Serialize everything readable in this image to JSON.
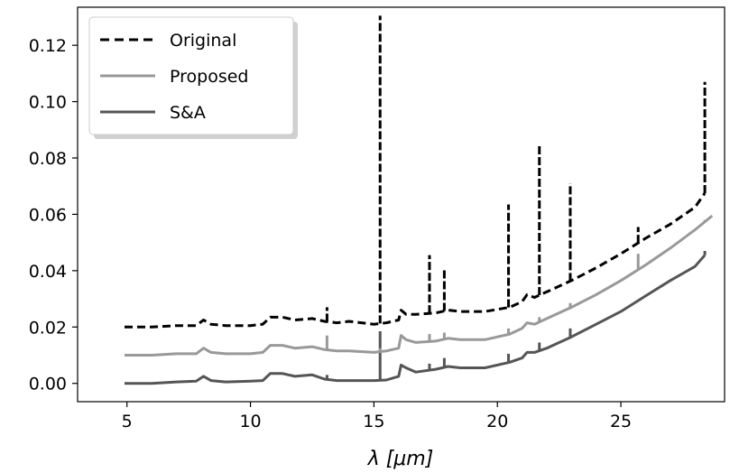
{
  "chart_data": {
    "type": "line",
    "xlabel": "λ [μm]",
    "ylabel": "",
    "xlim": [
      3.0,
      29.2
    ],
    "ylim": [
      -0.0065,
      0.1335
    ],
    "xticks": [
      5,
      10,
      15,
      20,
      25
    ],
    "xtick_labels": [
      "5",
      "10",
      "15",
      "20",
      "25"
    ],
    "yticks": [
      0.0,
      0.02,
      0.04,
      0.06,
      0.08,
      0.1,
      0.12
    ],
    "ytick_labels": [
      "0.00",
      "0.02",
      "0.04",
      "0.06",
      "0.08",
      "0.10",
      "0.12"
    ],
    "grid": false,
    "legend_position": "top-left",
    "series": [
      {
        "name": "Original",
        "style": "dashed",
        "color": "#000000",
        "points": [
          [
            4.9,
            0.02
          ],
          [
            6.0,
            0.02
          ],
          [
            7.0,
            0.0205
          ],
          [
            7.8,
            0.0205
          ],
          [
            8.1,
            0.0225
          ],
          [
            8.4,
            0.021
          ],
          [
            9.0,
            0.0205
          ],
          [
            10.0,
            0.0205
          ],
          [
            10.5,
            0.021
          ],
          [
            10.8,
            0.0235
          ],
          [
            11.3,
            0.0235
          ],
          [
            11.8,
            0.0225
          ],
          [
            12.5,
            0.023
          ],
          [
            13.0,
            0.022
          ],
          [
            13.5,
            0.0215
          ],
          [
            14.0,
            0.022
          ],
          [
            15.0,
            0.021
          ],
          [
            15.5,
            0.0215
          ],
          [
            16.0,
            0.0225
          ],
          [
            16.1,
            0.026
          ],
          [
            16.3,
            0.0245
          ],
          [
            16.7,
            0.0245
          ],
          [
            17.5,
            0.025
          ],
          [
            18.0,
            0.026
          ],
          [
            18.5,
            0.0255
          ],
          [
            19.5,
            0.0255
          ],
          [
            20.5,
            0.027
          ],
          [
            21.0,
            0.029
          ],
          [
            21.2,
            0.0315
          ],
          [
            21.5,
            0.0305
          ],
          [
            22.0,
            0.0325
          ],
          [
            23.0,
            0.0365
          ],
          [
            24.0,
            0.041
          ],
          [
            25.0,
            0.046
          ],
          [
            26.0,
            0.0515
          ],
          [
            27.0,
            0.0565
          ],
          [
            28.0,
            0.0625
          ],
          [
            28.4,
            0.0675
          ]
        ],
        "spikes": [
          [
            13.1,
            0.027
          ],
          [
            15.25,
            0.1305
          ],
          [
            17.25,
            0.0455
          ],
          [
            17.85,
            0.0405
          ],
          [
            20.45,
            0.0635
          ],
          [
            21.7,
            0.0845
          ],
          [
            22.95,
            0.071
          ],
          [
            25.7,
            0.0555
          ],
          [
            28.4,
            0.107
          ]
        ]
      },
      {
        "name": "Proposed",
        "style": "solid",
        "color": "#999999",
        "points": [
          [
            4.9,
            0.01
          ],
          [
            6.0,
            0.01
          ],
          [
            7.0,
            0.0105
          ],
          [
            7.8,
            0.0105
          ],
          [
            8.1,
            0.0125
          ],
          [
            8.4,
            0.011
          ],
          [
            9.0,
            0.0105
          ],
          [
            10.0,
            0.0105
          ],
          [
            10.5,
            0.011
          ],
          [
            10.8,
            0.0135
          ],
          [
            11.3,
            0.0135
          ],
          [
            11.8,
            0.0125
          ],
          [
            12.5,
            0.013
          ],
          [
            13.0,
            0.012
          ],
          [
            13.5,
            0.0115
          ],
          [
            14.0,
            0.0115
          ],
          [
            15.0,
            0.011
          ],
          [
            15.5,
            0.0115
          ],
          [
            16.0,
            0.0125
          ],
          [
            16.1,
            0.017
          ],
          [
            16.3,
            0.0155
          ],
          [
            16.7,
            0.0145
          ],
          [
            17.5,
            0.015
          ],
          [
            18.0,
            0.016
          ],
          [
            18.5,
            0.0155
          ],
          [
            19.5,
            0.0155
          ],
          [
            20.5,
            0.0175
          ],
          [
            21.0,
            0.0195
          ],
          [
            21.2,
            0.0215
          ],
          [
            21.5,
            0.021
          ],
          [
            22.0,
            0.023
          ],
          [
            23.0,
            0.027
          ],
          [
            24.0,
            0.0315
          ],
          [
            25.0,
            0.0365
          ],
          [
            26.0,
            0.042
          ],
          [
            27.0,
            0.048
          ],
          [
            28.0,
            0.0545
          ],
          [
            28.7,
            0.0595
          ]
        ],
        "spikes": [
          [
            13.1,
            0.017
          ],
          [
            15.25,
            0.0125
          ],
          [
            17.25,
            0.0175
          ],
          [
            17.85,
            0.018
          ],
          [
            20.45,
            0.0195
          ],
          [
            21.7,
            0.0235
          ],
          [
            22.95,
            0.0285
          ],
          [
            25.7,
            0.046
          ],
          [
            28.4,
            0.058
          ]
        ]
      },
      {
        "name": "S&A",
        "style": "solid",
        "color": "#555555",
        "points": [
          [
            4.9,
            0.0
          ],
          [
            6.0,
            0.0
          ],
          [
            7.0,
            0.0005
          ],
          [
            7.8,
            0.0008
          ],
          [
            8.1,
            0.0025
          ],
          [
            8.4,
            0.001
          ],
          [
            9.0,
            0.0005
          ],
          [
            10.0,
            0.0008
          ],
          [
            10.5,
            0.001
          ],
          [
            10.8,
            0.0035
          ],
          [
            11.3,
            0.0035
          ],
          [
            11.8,
            0.0025
          ],
          [
            12.5,
            0.003
          ],
          [
            13.0,
            0.0015
          ],
          [
            13.5,
            0.001
          ],
          [
            14.0,
            0.001
          ],
          [
            15.0,
            0.001
          ],
          [
            15.5,
            0.0012
          ],
          [
            16.0,
            0.0025
          ],
          [
            16.1,
            0.0065
          ],
          [
            16.3,
            0.0055
          ],
          [
            16.7,
            0.004
          ],
          [
            17.5,
            0.005
          ],
          [
            18.0,
            0.006
          ],
          [
            18.5,
            0.0055
          ],
          [
            19.5,
            0.0055
          ],
          [
            20.5,
            0.0075
          ],
          [
            21.0,
            0.009
          ],
          [
            21.2,
            0.011
          ],
          [
            21.5,
            0.011
          ],
          [
            22.0,
            0.0125
          ],
          [
            23.0,
            0.0165
          ],
          [
            24.0,
            0.021
          ],
          [
            25.0,
            0.0255
          ],
          [
            26.0,
            0.031
          ],
          [
            27.0,
            0.0365
          ],
          [
            28.0,
            0.0415
          ],
          [
            28.4,
            0.0455
          ]
        ],
        "spikes": [
          [
            13.1,
            0.003
          ],
          [
            15.25,
            0.0185
          ],
          [
            17.25,
            0.007
          ],
          [
            17.85,
            0.009
          ],
          [
            20.45,
            0.0105
          ],
          [
            21.7,
            0.0145
          ],
          [
            22.95,
            0.0195
          ],
          [
            28.4,
            0.047
          ]
        ]
      }
    ]
  }
}
